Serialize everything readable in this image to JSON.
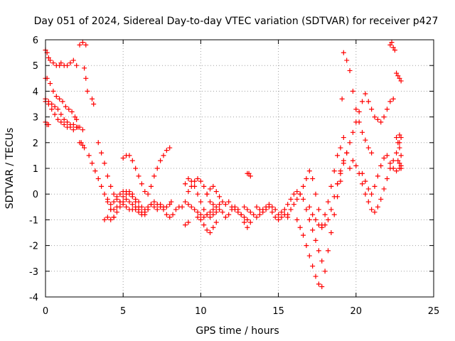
{
  "chart_data": {
    "type": "scatter",
    "title": "Day 051 of 2024, Sidereal Day-to-day VTEC variation (SDTVAR) for receiver p427",
    "xlabel": "GPS time / hours",
    "ylabel": "SDTVAR / TECUs",
    "xlim": [
      0,
      25
    ],
    "ylim": [
      -4,
      6
    ],
    "xticks": [
      0,
      5,
      10,
      15,
      20,
      25
    ],
    "yticks": [
      -4,
      -3,
      -2,
      -1,
      0,
      1,
      2,
      3,
      4,
      5,
      6
    ],
    "xtick_labels": [
      "0",
      "5",
      "10",
      "15",
      "20",
      "25"
    ],
    "ytick_labels": [
      "-4",
      "-3",
      "-2",
      "-1",
      "0",
      "1",
      "2",
      "3",
      "4",
      "5",
      "6"
    ],
    "grid": true,
    "marker": "+",
    "series": [
      {
        "name": "SDTVAR",
        "color": "#ff0000",
        "x": [
          0.0,
          0.1,
          0.2,
          0.3,
          0.5,
          0.7,
          0.9,
          1.0,
          1.2,
          1.4,
          1.6,
          1.8,
          2.0,
          2.2,
          2.4,
          2.6,
          0.0,
          0.1,
          0.3,
          0.5,
          0.7,
          0.9,
          1.1,
          1.3,
          1.5,
          1.7,
          1.9,
          2.0,
          0.0,
          0.2,
          0.4,
          0.6,
          0.8,
          1.0,
          1.2,
          1.4,
          1.6,
          1.8,
          2.0,
          2.1,
          0.0,
          0.2,
          0.4,
          0.6,
          0.8,
          1.0,
          1.2,
          1.4,
          1.6,
          1.8,
          2.0,
          2.2,
          2.4,
          0.0,
          0.1,
          0.2,
          2.5,
          2.6,
          2.7,
          2.3,
          2.4,
          3.0,
          3.1,
          2.2,
          2.5,
          2.8,
          3.0,
          3.2,
          3.4,
          3.6,
          3.8,
          4.0,
          4.2,
          4.4,
          3.4,
          3.6,
          3.8,
          4.0,
          4.2,
          4.4,
          4.6,
          4.8,
          5.0,
          5.2,
          5.4,
          5.6,
          5.8,
          6.0,
          3.8,
          4.0,
          4.2,
          4.4,
          4.6,
          4.8,
          5.0,
          5.2,
          5.4,
          5.6,
          5.8,
          6.0,
          6.2,
          6.4,
          6.6,
          6.8,
          7.0,
          7.2,
          7.4,
          7.6,
          7.8,
          8.0,
          8.1,
          5.0,
          5.2,
          5.4,
          5.6,
          5.8,
          6.0,
          6.2,
          6.4,
          6.6,
          6.8,
          7.0,
          7.2,
          7.4,
          7.6,
          7.8,
          8.0,
          4.0,
          4.2,
          4.4,
          4.6,
          4.8,
          5.0,
          5.2,
          5.4,
          5.6,
          5.8,
          6.0,
          6.2,
          6.4,
          6.6,
          6.8,
          7.0,
          7.2,
          7.4,
          7.6,
          7.8,
          8.0,
          8.2,
          8.4,
          8.6,
          8.8,
          4.2,
          4.4,
          4.6,
          4.8,
          5.0,
          5.2,
          5.4,
          5.6,
          5.8,
          6.0,
          6.2,
          6.4,
          9.0,
          9.2,
          9.4,
          9.6,
          9.8,
          10.0,
          10.2,
          10.4,
          10.6,
          10.8,
          11.0,
          11.2,
          11.4,
          11.6,
          11.8,
          12.0,
          12.2,
          12.4,
          12.6,
          12.8,
          13.0,
          9.0,
          9.2,
          9.4,
          9.6,
          9.8,
          10.0,
          10.2,
          10.4,
          10.6,
          10.8,
          11.0,
          11.2,
          9.2,
          9.4,
          9.6,
          9.8,
          10.0,
          10.2,
          10.4,
          10.6,
          10.8,
          9.8,
          10.0,
          10.2,
          10.4,
          10.6,
          10.8,
          11.0,
          10.4,
          10.6,
          10.8,
          11.0,
          11.2,
          11.4,
          11.6,
          11.8,
          12.0,
          12.2,
          12.4,
          12.6,
          12.8,
          13.0,
          13.2,
          9.0,
          9.2,
          13.0,
          13.1,
          13.2,
          12.8,
          13.0,
          13.2,
          13.4,
          13.6,
          13.8,
          14.0,
          14.2,
          14.4,
          14.6,
          14.8,
          15.0,
          15.2,
          15.4,
          15.6,
          15.8,
          16.0,
          16.2,
          16.4,
          13.6,
          13.8,
          14.0,
          14.2,
          14.4,
          14.6,
          14.8,
          15.0,
          15.2,
          15.4,
          15.6,
          15.6,
          15.8,
          16.0,
          16.2,
          16.4,
          16.6,
          16.8,
          17.0,
          17.2,
          17.4,
          17.6,
          17.8,
          18.0,
          18.2,
          18.4,
          18.6,
          18.8,
          19.0,
          19.2,
          16.2,
          16.4,
          16.6,
          16.8,
          17.0,
          17.2,
          17.4,
          17.6,
          17.8,
          18.0,
          18.2,
          18.4,
          18.6,
          18.8,
          19.0,
          17.0,
          17.2,
          17.4,
          17.6,
          17.8,
          18.0,
          18.2,
          18.4,
          18.6,
          18.8,
          19.0,
          19.2,
          19.4,
          16.6,
          16.8,
          17.0,
          17.2,
          17.4,
          17.6,
          17.8,
          19.2,
          19.4,
          19.6,
          19.8,
          20.0,
          20.2,
          20.4,
          20.6,
          20.8,
          21.0,
          18.8,
          19.0,
          19.2,
          19.4,
          19.6,
          19.8,
          20.0,
          20.2,
          20.4,
          20.6,
          20.8,
          21.0,
          21.2,
          21.4,
          21.6,
          21.8,
          22.0,
          22.2,
          22.4,
          19.6,
          19.8,
          20.0,
          20.2,
          20.4,
          20.6,
          20.8,
          21.0,
          21.2,
          21.4,
          21.6,
          21.8,
          22.0,
          22.2,
          22.4,
          22.6,
          22.8,
          20.4,
          20.6,
          20.8,
          21.0,
          21.2,
          21.4,
          21.6,
          21.8,
          22.0,
          22.2,
          22.4,
          22.6,
          22.8,
          22.9,
          19.1,
          22.2,
          22.3,
          22.4,
          22.5,
          22.6,
          22.7,
          22.8,
          22.9,
          22.6,
          22.7,
          22.8,
          22.9,
          22.7,
          22.8,
          22.9,
          22.8,
          22.9
        ],
        "y": [
          5.6,
          5.5,
          5.3,
          5.2,
          5.1,
          5.0,
          5.0,
          5.1,
          5.0,
          5.0,
          5.1,
          5.2,
          5.0,
          5.8,
          5.9,
          5.8,
          4.5,
          4.5,
          4.3,
          4.0,
          3.8,
          3.7,
          3.6,
          3.4,
          3.3,
          3.2,
          3.0,
          2.9,
          3.7,
          3.6,
          3.5,
          3.4,
          3.3,
          3.1,
          2.9,
          2.8,
          2.7,
          2.7,
          2.6,
          2.6,
          3.6,
          3.5,
          3.3,
          3.1,
          2.9,
          2.8,
          2.7,
          2.6,
          2.6,
          2.5,
          2.6,
          2.6,
          2.5,
          2.8,
          2.7,
          2.7,
          4.9,
          4.5,
          4.0,
          2.0,
          1.9,
          3.7,
          3.5,
          2.0,
          1.8,
          1.5,
          1.2,
          0.9,
          0.6,
          0.3,
          0.0,
          -0.3,
          -0.6,
          -0.9,
          2.0,
          1.6,
          1.2,
          0.7,
          0.3,
          0.0,
          -0.2,
          -0.3,
          -0.4,
          -0.5,
          -0.6,
          -0.6,
          -0.6,
          -0.7,
          -1.0,
          -0.9,
          -0.6,
          -0.3,
          -0.1,
          0.0,
          0.1,
          0.1,
          0.0,
          -0.1,
          -0.3,
          -0.5,
          -0.7,
          -0.8,
          -0.6,
          -0.4,
          -0.3,
          -0.4,
          -0.5,
          -0.6,
          -0.5,
          -0.4,
          -0.3,
          1.4,
          1.5,
          1.5,
          1.3,
          1.0,
          0.7,
          0.4,
          0.1,
          0.0,
          0.3,
          0.7,
          1.0,
          1.3,
          1.5,
          1.7,
          1.8,
          -0.2,
          -0.4,
          -0.6,
          -0.5,
          -0.3,
          -0.1,
          0.0,
          0.1,
          0.0,
          -0.2,
          -0.3,
          -0.5,
          -0.6,
          -0.5,
          -0.4,
          -0.5,
          -0.6,
          -0.4,
          -0.5,
          -0.8,
          -0.9,
          -0.8,
          -0.6,
          -0.5,
          -0.5,
          -1.0,
          -0.9,
          -0.7,
          -0.5,
          -0.3,
          -0.2,
          -0.3,
          -0.4,
          -0.5,
          -0.6,
          -0.8,
          -0.7,
          0.4,
          0.6,
          0.5,
          0.3,
          0.0,
          -0.3,
          -0.6,
          -0.8,
          -0.9,
          -0.8,
          -0.7,
          -0.6,
          -0.7,
          -0.9,
          -0.8,
          -0.6,
          -0.5,
          -0.6,
          -0.8,
          -1.1,
          -1.3,
          -0.3,
          -0.4,
          -0.5,
          -0.6,
          -0.7,
          -0.8,
          -0.9,
          -0.8,
          -0.7,
          -0.6,
          -0.5,
          -0.4,
          0.1,
          0.3,
          0.5,
          0.6,
          0.5,
          0.3,
          0.0,
          -0.3,
          -0.4,
          -0.9,
          -1.0,
          -1.2,
          -1.4,
          -1.5,
          -1.3,
          -1.1,
          0.0,
          0.2,
          0.3,
          0.1,
          -0.1,
          -0.3,
          -0.4,
          -0.3,
          -0.5,
          -0.6,
          -0.7,
          -0.8,
          -0.9,
          -1.0,
          -1.1,
          -1.2,
          -1.1,
          0.8,
          0.8,
          0.7,
          -0.5,
          -0.6,
          -0.7,
          -0.8,
          -0.9,
          -0.8,
          -0.6,
          -0.5,
          -0.4,
          -0.5,
          -0.6,
          -0.8,
          -0.7,
          -0.6,
          -0.4,
          -0.2,
          0.0,
          0.1,
          0.0,
          -0.5,
          -0.6,
          -0.7,
          -0.6,
          -0.5,
          -0.7,
          -0.9,
          -1.0,
          -0.9,
          -0.8,
          -0.9,
          -0.8,
          -0.6,
          -0.4,
          -0.2,
          0.0,
          0.3,
          0.6,
          0.9,
          0.6,
          0.0,
          -0.6,
          -1.2,
          -0.8,
          -0.3,
          0.3,
          0.9,
          1.5,
          1.8,
          2.2,
          -1.0,
          -1.3,
          -1.6,
          -2.0,
          -2.4,
          -2.8,
          -3.2,
          -3.5,
          -3.6,
          -3.0,
          -2.2,
          -1.5,
          -0.8,
          -0.1,
          0.5,
          -0.5,
          -0.8,
          -1.0,
          -1.2,
          -1.3,
          -1.2,
          -1.0,
          -0.6,
          -0.1,
          0.4,
          0.9,
          1.3,
          1.6,
          -0.2,
          -0.6,
          -1.0,
          -1.4,
          -1.8,
          -2.2,
          -2.6,
          5.5,
          5.2,
          4.8,
          4.0,
          3.3,
          2.8,
          2.4,
          2.1,
          1.8,
          1.6,
          0.4,
          0.8,
          1.2,
          1.6,
          2.0,
          2.4,
          2.8,
          3.2,
          3.6,
          3.9,
          3.6,
          3.3,
          3.0,
          2.9,
          2.8,
          3.0,
          3.3,
          3.6,
          3.7,
          1.0,
          1.3,
          1.1,
          0.8,
          0.4,
          0.0,
          -0.3,
          -0.6,
          -0.7,
          -0.5,
          -0.2,
          0.2,
          0.6,
          1.0,
          1.3,
          1.6,
          2.0,
          0.8,
          0.5,
          0.2,
          0.0,
          0.3,
          0.7,
          1.1,
          1.4,
          1.5,
          1.2,
          1.0,
          0.9,
          1.0,
          1.1,
          3.7,
          5.8,
          5.9,
          5.7,
          5.6,
          4.7,
          4.6,
          4.5,
          4.4,
          2.2,
          2.0,
          1.8,
          1.5,
          1.3,
          1.2,
          1.0,
          2.3,
          2.2
        ]
      }
    ]
  }
}
